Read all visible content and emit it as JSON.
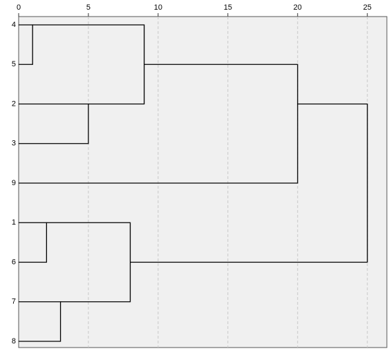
{
  "chart_data": {
    "type": "dendrogram",
    "leaves": [
      "4",
      "5",
      "2",
      "3",
      "9",
      "1",
      "6",
      "7",
      "8"
    ],
    "merges": [
      {
        "left": 0,
        "right": 1,
        "height": 1
      },
      {
        "left": 5,
        "right": 6,
        "height": 2
      },
      {
        "left": 7,
        "right": 8,
        "height": 3
      },
      {
        "left": 2,
        "right": 3,
        "height": 5
      },
      {
        "left": 10,
        "right": 11,
        "height": 8
      },
      {
        "left": 9,
        "right": 12,
        "height": 9
      },
      {
        "left": 14,
        "right": 4,
        "height": 20
      },
      {
        "left": 15,
        "right": 13,
        "height": 25
      }
    ],
    "xlim": [
      0,
      26.4
    ],
    "xticks": [
      0,
      5,
      10,
      15,
      20,
      25
    ],
    "grid": true,
    "color": "#000000"
  }
}
